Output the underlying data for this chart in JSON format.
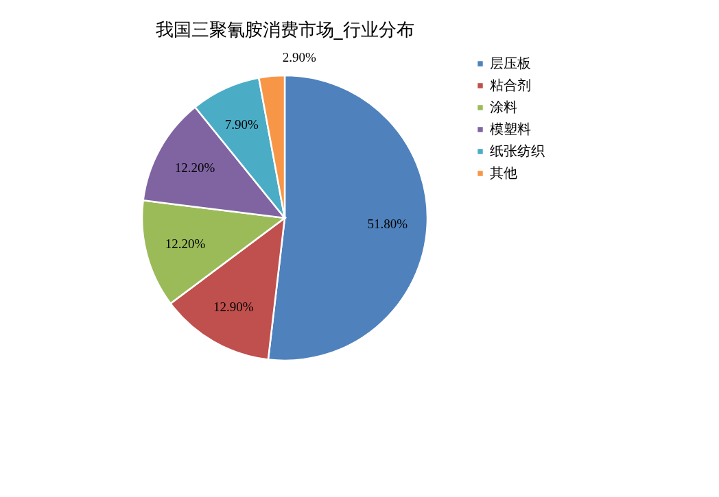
{
  "chart_data": {
    "type": "pie",
    "title": "我国三聚氰胺消费市场_行业分布",
    "categories": [
      "层压板",
      "粘合剂",
      "涂料",
      "模塑料",
      "纸张纺织",
      "其他"
    ],
    "values": [
      51.8,
      12.9,
      12.2,
      12.2,
      7.9,
      2.9
    ],
    "colors": [
      "#4f81bd",
      "#c0504d",
      "#9bbb59",
      "#8064a2",
      "#4bacc6",
      "#f79646"
    ],
    "value_labels": [
      "51.80%",
      "12.90%",
      "12.20%",
      "12.20%",
      "7.90%",
      "2.90%"
    ],
    "legend": "right"
  }
}
